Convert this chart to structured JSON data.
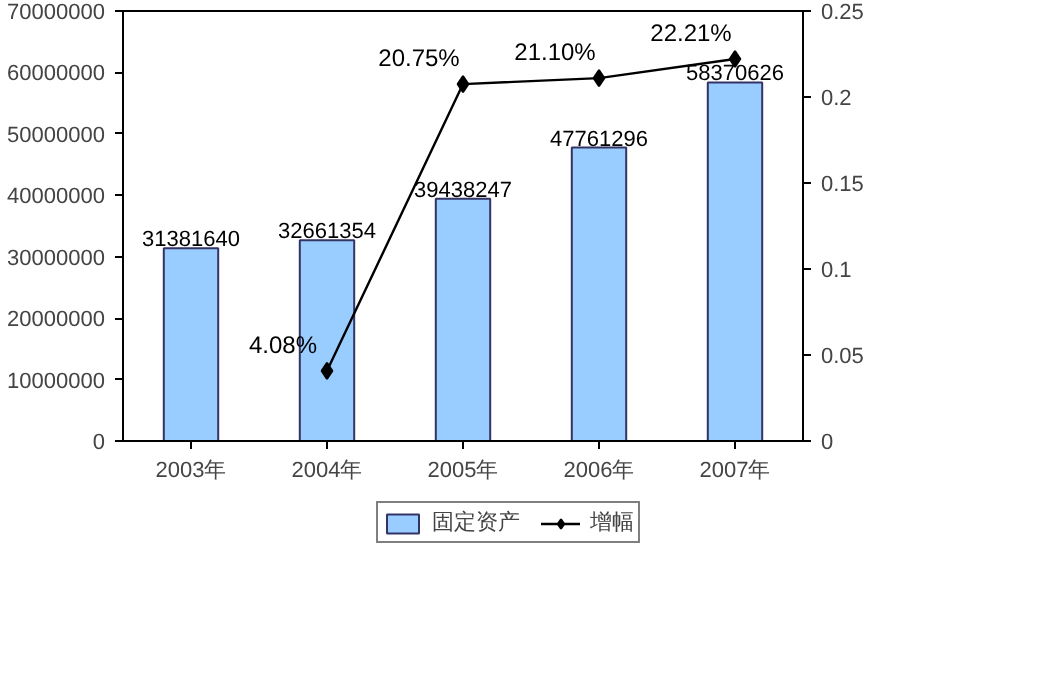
{
  "chart_data": {
    "type": "bar",
    "categories": [
      "2003年",
      "2004年",
      "2005年",
      "2006年",
      "2007年"
    ],
    "ylim": [
      0,
      70000000
    ],
    "yticks": [
      0,
      10000000,
      20000000,
      30000000,
      40000000,
      50000000,
      60000000,
      70000000
    ],
    "y2lim": [
      0,
      0.25
    ],
    "y2ticks": [
      0,
      0.05,
      0.1,
      0.15,
      0.2,
      0.25
    ],
    "grid": false,
    "legend": "bottom",
    "data_labels": true,
    "series": [
      {
        "name": "固定资产",
        "color": "#99ccff",
        "values": [
          31381640,
          32661354,
          39438247,
          47761296,
          58370626
        ]
      },
      {
        "name": "增幅",
        "type": "line",
        "axis": "y2",
        "color": "#000000",
        "marker": "diamond",
        "values": [
          null,
          0.0408,
          0.2075,
          0.211,
          0.2221
        ],
        "value_labels": [
          null,
          "4.08%",
          "20.75%",
          "21.10%",
          "22.21%"
        ]
      }
    ]
  }
}
